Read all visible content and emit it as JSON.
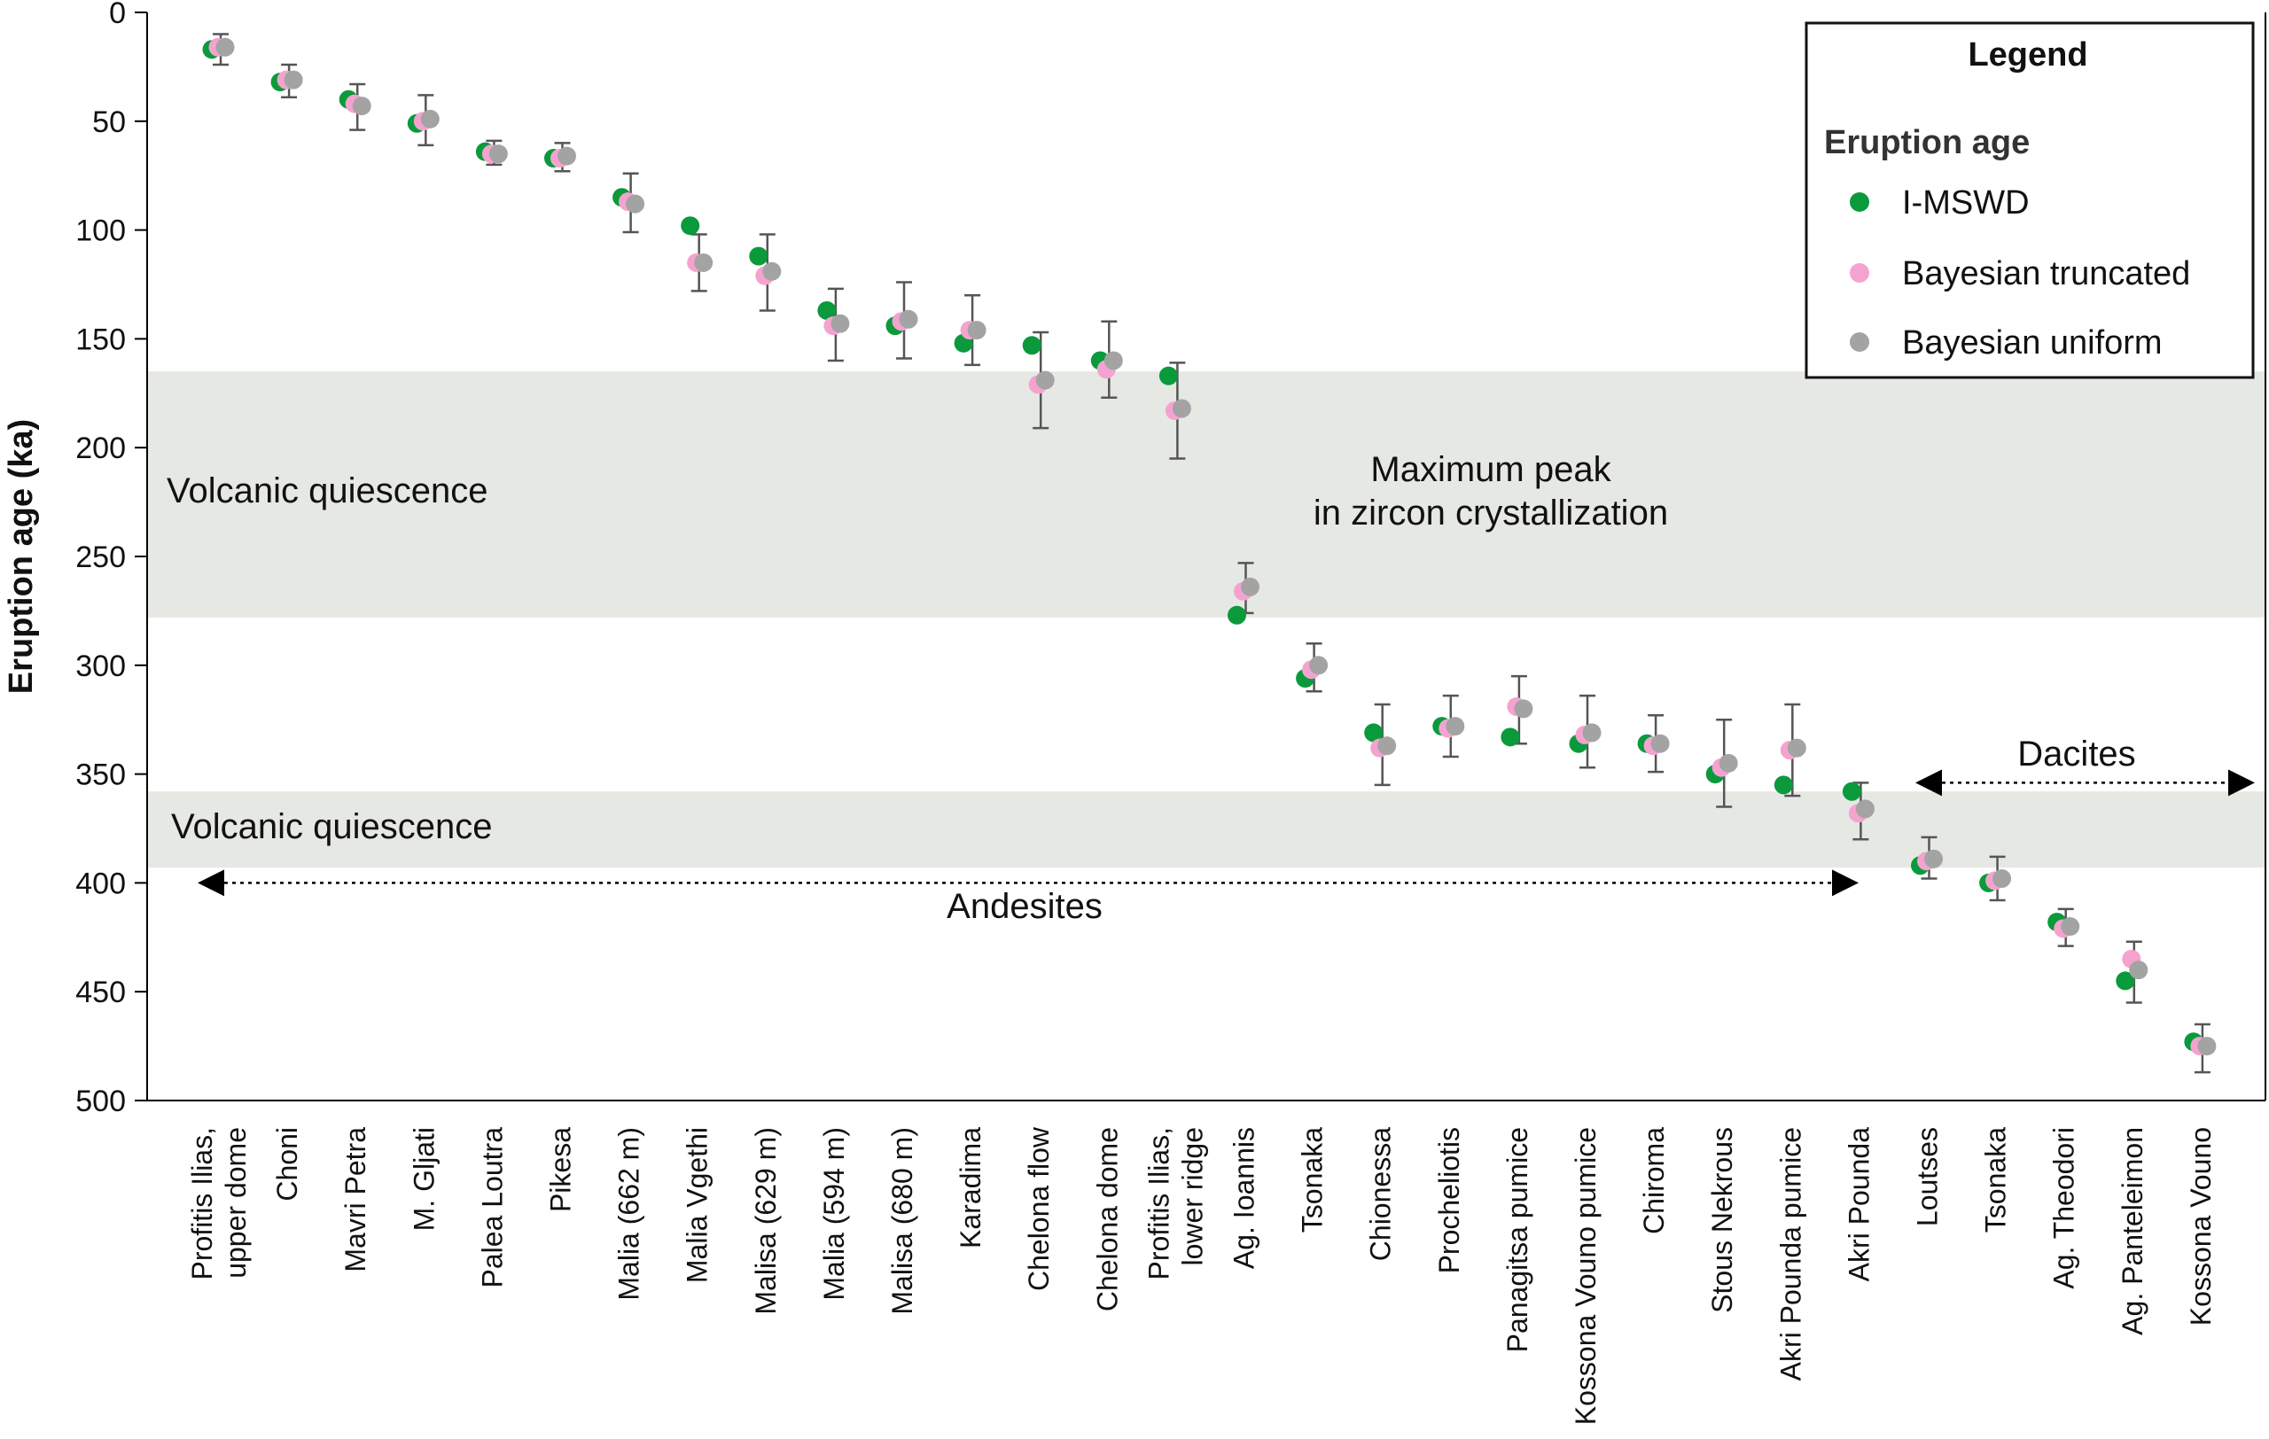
{
  "chart_data": {
    "type": "scatter",
    "ylabel": "Eruption age (ka)",
    "y_axis_inverted": true,
    "ylim": [
      0,
      500
    ],
    "yticks": [
      0,
      50,
      100,
      150,
      200,
      250,
      300,
      350,
      400,
      450,
      500
    ],
    "grid": false,
    "legend": {
      "title": "Legend",
      "subtitle": "Eruption age",
      "placement": "top-right",
      "entries": [
        "I-MSWD",
        "Bayesian truncated",
        "Bayesian uniform"
      ]
    },
    "colors": {
      "imswd": "#0a9a3c",
      "truncated": "#f4a3cf",
      "uniform": "#a3a3a3",
      "band": "#e6e8e3",
      "errorbar": "#555555"
    },
    "categories": [
      [
        "Profitis Ilias,",
        "upper dome"
      ],
      [
        "Choni"
      ],
      [
        "Mavri Petra"
      ],
      [
        "M. Gljati"
      ],
      [
        "Palea Loutra"
      ],
      [
        "Pikesa"
      ],
      [
        "Malia (662 m)"
      ],
      [
        "Malia Vgethi"
      ],
      [
        "Malisa (629 m)"
      ],
      [
        "Malia (594 m)"
      ],
      [
        "Malisa (680 m)"
      ],
      [
        "Karadima"
      ],
      [
        "Chelona flow"
      ],
      [
        "Chelona dome"
      ],
      [
        "Profitis Ilias,",
        "lower ridge"
      ],
      [
        "Ag. Ioannis"
      ],
      [
        "Tsonaka"
      ],
      [
        "Chionessa"
      ],
      [
        "Procheliotis"
      ],
      [
        "Panagitsa pumice"
      ],
      [
        "Kossona Vouno pumice"
      ],
      [
        "Chiroma"
      ],
      [
        "Stous Nekrous"
      ],
      [
        "Akri Pounda pumice"
      ],
      [
        "Akri Pounda"
      ],
      [
        "Loutses"
      ],
      [
        "Tsonaka"
      ],
      [
        "Ag. Theodori"
      ],
      [
        "Ag. Panteleimon"
      ],
      [
        "Kossona Vouno"
      ]
    ],
    "series": [
      {
        "name": "I-MSWD",
        "values": [
          17,
          32,
          40,
          51,
          64,
          67,
          85,
          98,
          112,
          137,
          144,
          152,
          153,
          160,
          167,
          277,
          306,
          331,
          328,
          333,
          336,
          336,
          350,
          355,
          358,
          392,
          400,
          418,
          445,
          473
        ]
      },
      {
        "name": "Bayesian truncated",
        "values": [
          16,
          31,
          42,
          50,
          65,
          67,
          87,
          115,
          121,
          144,
          142,
          146,
          171,
          164,
          183,
          266,
          302,
          338,
          329,
          319,
          332,
          337,
          347,
          339,
          368,
          390,
          399,
          421,
          435,
          475
        ]
      },
      {
        "name": "Bayesian uniform",
        "values": [
          16,
          31,
          43,
          49,
          65,
          66,
          88,
          115,
          119,
          143,
          141,
          146,
          169,
          160,
          182,
          264,
          300,
          337,
          328,
          320,
          331,
          336,
          345,
          338,
          366,
          389,
          398,
          420,
          440,
          475
        ],
        "error_low": [
          10,
          24,
          33,
          38,
          59,
          60,
          74,
          102,
          102,
          127,
          124,
          130,
          147,
          142,
          161,
          253,
          290,
          318,
          314,
          305,
          314,
          323,
          325,
          318,
          354,
          379,
          388,
          412,
          427,
          465
        ],
        "error_high": [
          24,
          39,
          54,
          61,
          70,
          73,
          101,
          128,
          137,
          160,
          159,
          162,
          191,
          177,
          205,
          276,
          312,
          355,
          342,
          336,
          347,
          349,
          365,
          360,
          380,
          398,
          408,
          429,
          455,
          487
        ]
      }
    ],
    "bands": [
      {
        "label": "Volcanic quiescence",
        "range": [
          165,
          278
        ]
      },
      {
        "label": "Volcanic quiescence",
        "range": [
          358,
          393
        ]
      }
    ],
    "annotations": [
      {
        "lines": [
          "Maximum peak",
          "in zircon crystallization"
        ]
      },
      {
        "lines": [
          "Andesites"
        ],
        "arrow_y": 400,
        "from_category": 0,
        "to_category": 24
      },
      {
        "lines": [
          "Dacites"
        ],
        "arrow_y": 354,
        "from_category": 25,
        "to_category": 29
      }
    ]
  }
}
